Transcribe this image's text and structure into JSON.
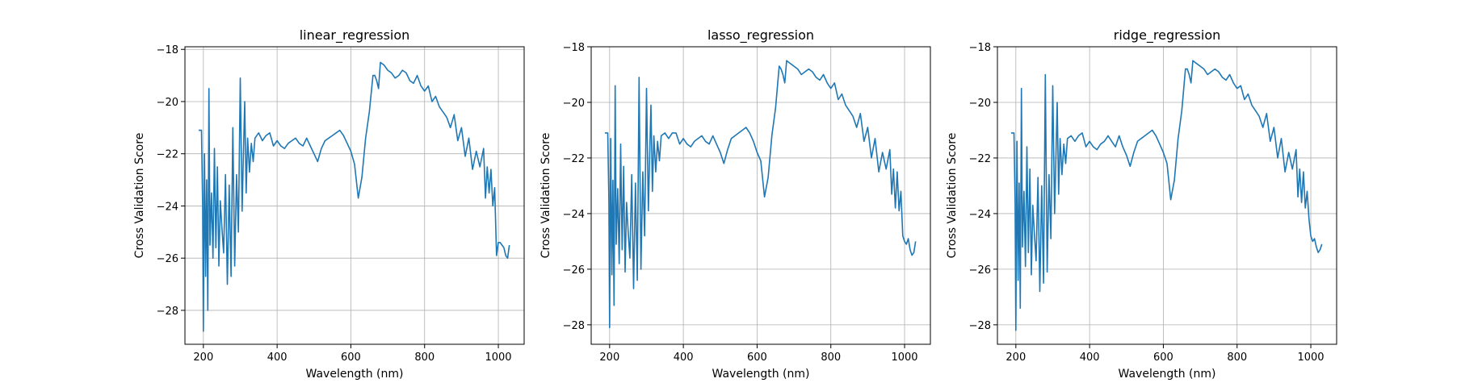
{
  "chart_data": [
    {
      "type": "line",
      "title": "linear_regression",
      "xlabel": "Wavelength (nm)",
      "ylabel": "Cross Validation Score",
      "xlim": [
        150,
        1070
      ],
      "ylim": [
        -29.3,
        -17.9
      ],
      "xticks": [
        200,
        400,
        600,
        800,
        1000
      ],
      "yticks": [
        -28,
        -26,
        -24,
        -22,
        -20,
        -18
      ],
      "grid": true,
      "color": "#1f77b4",
      "x": [
        187,
        195,
        198,
        200,
        203,
        206,
        209,
        212,
        215,
        218,
        222,
        226,
        230,
        234,
        238,
        242,
        246,
        250,
        255,
        260,
        265,
        270,
        275,
        280,
        285,
        290,
        295,
        300,
        305,
        308,
        312,
        316,
        320,
        325,
        330,
        335,
        340,
        350,
        360,
        370,
        380,
        390,
        400,
        410,
        420,
        430,
        440,
        450,
        460,
        470,
        480,
        490,
        500,
        510,
        520,
        530,
        540,
        550,
        560,
        570,
        580,
        590,
        600,
        610,
        620,
        630,
        640,
        650,
        660,
        665,
        670,
        675,
        680,
        690,
        700,
        710,
        720,
        730,
        740,
        750,
        760,
        770,
        780,
        790,
        800,
        810,
        820,
        830,
        840,
        850,
        860,
        870,
        880,
        890,
        900,
        910,
        920,
        930,
        940,
        950,
        960,
        965,
        970,
        975,
        980,
        985,
        990,
        995,
        1000,
        1005,
        1010,
        1015,
        1020,
        1025,
        1030
      ],
      "y": [
        -21.1,
        -21.1,
        -24.0,
        -28.8,
        -22.0,
        -26.7,
        -23.0,
        -28.0,
        -19.5,
        -25.5,
        -23.5,
        -26.0,
        -21.8,
        -25.6,
        -22.5,
        -26.3,
        -23.8,
        -24.8,
        -25.8,
        -22.8,
        -27.0,
        -23.2,
        -26.7,
        -21.0,
        -26.3,
        -22.8,
        -25.0,
        -19.1,
        -24.2,
        -22.4,
        -20.0,
        -23.5,
        -21.4,
        -22.7,
        -21.6,
        -22.3,
        -21.4,
        -21.2,
        -21.5,
        -21.3,
        -21.2,
        -21.7,
        -21.5,
        -21.7,
        -21.8,
        -21.6,
        -21.5,
        -21.4,
        -21.6,
        -21.7,
        -21.4,
        -21.7,
        -22.0,
        -22.3,
        -21.8,
        -21.5,
        -21.4,
        -21.3,
        -21.2,
        -21.1,
        -21.3,
        -21.6,
        -21.9,
        -22.4,
        -23.7,
        -22.9,
        -21.4,
        -20.4,
        -19.0,
        -19.0,
        -19.2,
        -19.5,
        -18.5,
        -18.6,
        -18.8,
        -18.9,
        -19.1,
        -19.0,
        -18.8,
        -18.9,
        -19.2,
        -19.3,
        -19.0,
        -19.4,
        -19.6,
        -19.4,
        -20.0,
        -19.8,
        -20.2,
        -20.4,
        -20.6,
        -21.0,
        -20.5,
        -21.5,
        -21.0,
        -22.1,
        -21.4,
        -22.6,
        -21.9,
        -22.5,
        -21.8,
        -23.7,
        -22.5,
        -23.5,
        -22.6,
        -24.0,
        -23.3,
        -25.9,
        -25.4,
        -25.4,
        -25.5,
        -25.6,
        -25.9,
        -26.0,
        -25.5
      ]
    },
    {
      "type": "line",
      "title": "lasso_regression",
      "xlabel": "Wavelength (nm)",
      "ylabel": "Cross Validation Score",
      "xlim": [
        150,
        1070
      ],
      "ylim": [
        -28.7,
        -18.0
      ],
      "xticks": [
        200,
        400,
        600,
        800,
        1000
      ],
      "yticks": [
        -28,
        -26,
        -24,
        -22,
        -20,
        -18
      ],
      "grid": true,
      "color": "#1f77b4",
      "x": [
        187,
        195,
        198,
        200,
        203,
        206,
        209,
        212,
        215,
        218,
        222,
        226,
        230,
        234,
        238,
        242,
        246,
        250,
        255,
        260,
        265,
        270,
        275,
        280,
        285,
        290,
        295,
        300,
        305,
        308,
        312,
        316,
        320,
        325,
        330,
        335,
        340,
        350,
        360,
        370,
        380,
        390,
        400,
        410,
        420,
        430,
        440,
        450,
        460,
        470,
        480,
        490,
        500,
        510,
        520,
        530,
        540,
        550,
        560,
        570,
        580,
        590,
        600,
        610,
        620,
        630,
        640,
        650,
        660,
        665,
        670,
        675,
        680,
        690,
        700,
        710,
        720,
        730,
        740,
        750,
        760,
        770,
        780,
        790,
        800,
        810,
        820,
        830,
        840,
        850,
        860,
        870,
        880,
        890,
        900,
        910,
        920,
        930,
        940,
        950,
        960,
        965,
        970,
        975,
        980,
        985,
        990,
        995,
        1000,
        1005,
        1010,
        1015,
        1020,
        1025,
        1030
      ],
      "y": [
        -21.1,
        -21.1,
        -23.5,
        -28.1,
        -21.3,
        -26.2,
        -22.8,
        -27.3,
        -19.4,
        -25.1,
        -23.1,
        -25.8,
        -21.5,
        -25.3,
        -22.3,
        -26.1,
        -23.6,
        -24.6,
        -25.6,
        -22.6,
        -26.7,
        -22.9,
        -26.4,
        -19.1,
        -26.0,
        -22.5,
        -24.8,
        -19.5,
        -23.9,
        -22.3,
        -20.1,
        -23.2,
        -21.2,
        -22.5,
        -21.4,
        -22.1,
        -21.2,
        -21.1,
        -21.3,
        -21.1,
        -21.1,
        -21.5,
        -21.3,
        -21.5,
        -21.6,
        -21.4,
        -21.3,
        -21.2,
        -21.4,
        -21.5,
        -21.2,
        -21.5,
        -21.8,
        -22.2,
        -21.7,
        -21.3,
        -21.2,
        -21.1,
        -21.0,
        -20.9,
        -21.1,
        -21.4,
        -21.8,
        -22.1,
        -23.4,
        -22.7,
        -21.2,
        -20.2,
        -18.7,
        -18.8,
        -19.0,
        -19.3,
        -18.5,
        -18.6,
        -18.7,
        -18.8,
        -19.0,
        -18.9,
        -18.8,
        -18.9,
        -19.1,
        -19.2,
        -19.0,
        -19.3,
        -19.5,
        -19.3,
        -19.9,
        -19.7,
        -20.1,
        -20.3,
        -20.5,
        -20.9,
        -20.4,
        -21.4,
        -20.9,
        -22.0,
        -21.3,
        -22.5,
        -21.8,
        -22.4,
        -21.7,
        -23.3,
        -22.4,
        -23.8,
        -22.5,
        -23.9,
        -23.2,
        -24.8,
        -25.0,
        -25.1,
        -24.9,
        -25.3,
        -25.5,
        -25.4,
        -25.0
      ]
    },
    {
      "type": "line",
      "title": "ridge_regression",
      "xlabel": "Wavelength (nm)",
      "ylabel": "Cross Validation Score",
      "xlim": [
        150,
        1070
      ],
      "ylim": [
        -28.7,
        -18.0
      ],
      "xticks": [
        200,
        400,
        600,
        800,
        1000
      ],
      "yticks": [
        -28,
        -26,
        -24,
        -22,
        -20,
        -18
      ],
      "grid": true,
      "color": "#1f77b4",
      "x": [
        187,
        195,
        198,
        200,
        203,
        206,
        209,
        212,
        215,
        218,
        222,
        226,
        230,
        234,
        238,
        242,
        246,
        250,
        255,
        260,
        265,
        270,
        275,
        280,
        285,
        290,
        295,
        300,
        305,
        308,
        312,
        316,
        320,
        325,
        330,
        335,
        340,
        350,
        360,
        370,
        380,
        390,
        400,
        410,
        420,
        430,
        440,
        450,
        460,
        470,
        480,
        490,
        500,
        510,
        520,
        530,
        540,
        550,
        560,
        570,
        580,
        590,
        600,
        610,
        620,
        630,
        640,
        650,
        660,
        665,
        670,
        675,
        680,
        690,
        700,
        710,
        720,
        730,
        740,
        750,
        760,
        770,
        780,
        790,
        800,
        810,
        820,
        830,
        840,
        850,
        860,
        870,
        880,
        890,
        900,
        910,
        920,
        930,
        940,
        950,
        960,
        965,
        970,
        975,
        980,
        985,
        990,
        995,
        1000,
        1005,
        1010,
        1015,
        1020,
        1025,
        1030
      ],
      "y": [
        -21.1,
        -21.1,
        -23.6,
        -28.2,
        -21.4,
        -26.4,
        -22.9,
        -27.4,
        -19.5,
        -25.2,
        -23.2,
        -25.9,
        -21.6,
        -25.4,
        -22.4,
        -26.2,
        -23.7,
        -24.7,
        -25.7,
        -22.7,
        -26.8,
        -23.0,
        -26.5,
        -19.0,
        -26.1,
        -22.6,
        -24.9,
        -19.4,
        -24.0,
        -22.4,
        -20.0,
        -23.3,
        -21.3,
        -22.6,
        -21.5,
        -22.2,
        -21.3,
        -21.2,
        -21.4,
        -21.2,
        -21.1,
        -21.6,
        -21.4,
        -21.6,
        -21.7,
        -21.5,
        -21.4,
        -21.2,
        -21.4,
        -21.6,
        -21.2,
        -21.6,
        -21.9,
        -22.3,
        -21.8,
        -21.4,
        -21.3,
        -21.2,
        -21.1,
        -21.0,
        -21.2,
        -21.5,
        -21.8,
        -22.2,
        -23.5,
        -22.8,
        -21.3,
        -20.3,
        -18.8,
        -18.8,
        -19.0,
        -19.3,
        -18.5,
        -18.6,
        -18.7,
        -18.8,
        -19.0,
        -18.9,
        -18.8,
        -18.9,
        -19.1,
        -19.2,
        -19.0,
        -19.3,
        -19.5,
        -19.4,
        -19.9,
        -19.7,
        -20.1,
        -20.3,
        -20.5,
        -20.9,
        -20.4,
        -21.4,
        -20.9,
        -22.0,
        -21.3,
        -22.5,
        -21.8,
        -22.4,
        -21.7,
        -23.4,
        -22.4,
        -23.6,
        -22.5,
        -23.8,
        -23.2,
        -24.2,
        -24.8,
        -25.0,
        -24.9,
        -25.2,
        -25.4,
        -25.3,
        -25.1
      ]
    }
  ]
}
